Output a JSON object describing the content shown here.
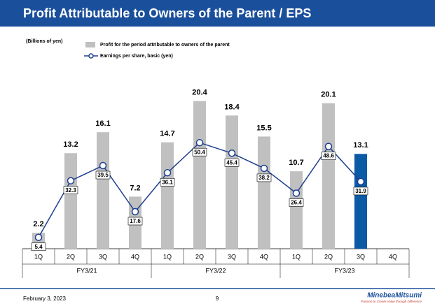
{
  "header": {
    "title": "Profit Attributable to Owners of the Parent / EPS"
  },
  "chart_data": {
    "type": "bar",
    "unit": "(Billions of yen)",
    "categories": [
      "1Q",
      "2Q",
      "3Q",
      "4Q",
      "1Q",
      "2Q",
      "3Q",
      "4Q",
      "1Q",
      "2Q",
      "3Q",
      "4Q"
    ],
    "groups": [
      "FY3/21",
      "FY3/22",
      "FY3/23"
    ],
    "series": [
      {
        "name": "Profit for the period attributable to owners of the parent",
        "type": "bar",
        "color": "#c0c0c0",
        "colors": [
          "#c0c0c0",
          "#c0c0c0",
          "#c0c0c0",
          "#c0c0c0",
          "#c0c0c0",
          "#c0c0c0",
          "#c0c0c0",
          "#c0c0c0",
          "#c0c0c0",
          "#c0c0c0",
          "#0b5aa6",
          "#c0c0c0"
        ],
        "values": [
          2.2,
          13.2,
          16.1,
          7.2,
          14.7,
          20.4,
          18.4,
          15.5,
          10.7,
          20.1,
          13.1,
          null
        ]
      },
      {
        "name": "Earnings per share, basic (yen)",
        "type": "line",
        "axis": "y2",
        "color": "#1f3f8f",
        "values": [
          5.4,
          32.3,
          39.5,
          17.6,
          36.1,
          50.4,
          45.4,
          38.2,
          26.4,
          48.6,
          31.9,
          null
        ]
      }
    ],
    "ylim": [
      0,
      25
    ],
    "y2lim": [
      0,
      86
    ]
  },
  "footer": {
    "date": "February 3, 2023",
    "page": "9",
    "logo": "MinebeaMitsumi",
    "tagline": "Passion to Create Value through Difference"
  }
}
